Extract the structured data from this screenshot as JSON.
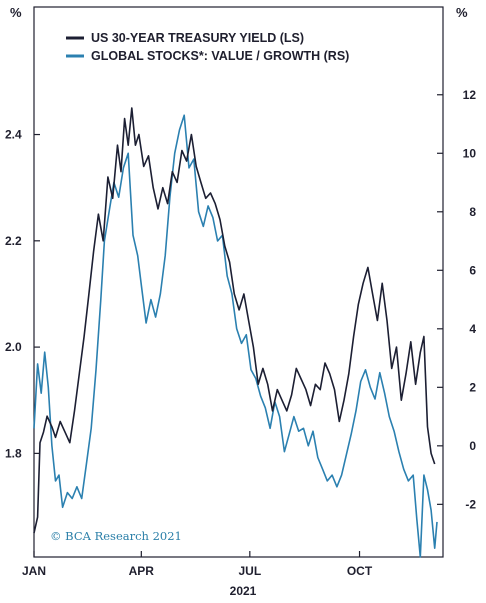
{
  "chart_data": {
    "type": "line",
    "title": "",
    "left_axis": {
      "unit_label": "%",
      "ticks": [
        1.8,
        2.0,
        2.2,
        2.4
      ],
      "tick_labels": [
        "1.8",
        "2.0",
        "2.2",
        "2.4"
      ],
      "ylim": [
        1.605,
        2.64
      ]
    },
    "right_axis": {
      "unit_label": "%",
      "ticks": [
        -2,
        0,
        2,
        4,
        6,
        8,
        10,
        12
      ],
      "tick_labels": [
        "-2",
        "0",
        "2",
        "4",
        "6",
        "8",
        "10",
        "12"
      ],
      "ylim": [
        -3.8,
        15
      ]
    },
    "x_axis": {
      "ticks": [
        "2021-01-01",
        "2021-04-01",
        "2021-07-01",
        "2021-10-01"
      ],
      "tick_labels": [
        "JAN",
        "APR",
        "JUL",
        "OCT"
      ],
      "year_label": "2021",
      "range": [
        "2021-01-01",
        "2021-12-10"
      ]
    },
    "series": [
      {
        "name": "US 30-YEAR TREASURY YIELD (LS)",
        "axis": "left",
        "color": "#1c1f33",
        "points": [
          [
            "2021-01-01",
            1.65
          ],
          [
            "2021-01-04",
            1.68
          ],
          [
            "2021-01-06",
            1.82
          ],
          [
            "2021-01-09",
            1.84
          ],
          [
            "2021-01-12",
            1.87
          ],
          [
            "2021-01-16",
            1.85
          ],
          [
            "2021-01-19",
            1.83
          ],
          [
            "2021-01-23",
            1.86
          ],
          [
            "2021-01-27",
            1.84
          ],
          [
            "2021-01-31",
            1.82
          ],
          [
            "2021-02-04",
            1.88
          ],
          [
            "2021-02-08",
            1.95
          ],
          [
            "2021-02-12",
            2.02
          ],
          [
            "2021-02-16",
            2.1
          ],
          [
            "2021-02-20",
            2.18
          ],
          [
            "2021-02-24",
            2.25
          ],
          [
            "2021-02-28",
            2.2
          ],
          [
            "2021-03-04",
            2.32
          ],
          [
            "2021-03-08",
            2.28
          ],
          [
            "2021-03-12",
            2.38
          ],
          [
            "2021-03-15",
            2.33
          ],
          [
            "2021-03-18",
            2.43
          ],
          [
            "2021-03-21",
            2.38
          ],
          [
            "2021-03-24",
            2.45
          ],
          [
            "2021-03-27",
            2.38
          ],
          [
            "2021-03-30",
            2.4
          ],
          [
            "2021-04-03",
            2.34
          ],
          [
            "2021-04-07",
            2.36
          ],
          [
            "2021-04-11",
            2.3
          ],
          [
            "2021-04-15",
            2.26
          ],
          [
            "2021-04-19",
            2.3
          ],
          [
            "2021-04-23",
            2.27
          ],
          [
            "2021-04-27",
            2.33
          ],
          [
            "2021-05-01",
            2.31
          ],
          [
            "2021-05-05",
            2.37
          ],
          [
            "2021-05-09",
            2.35
          ],
          [
            "2021-05-13",
            2.4
          ],
          [
            "2021-05-17",
            2.34
          ],
          [
            "2021-05-21",
            2.31
          ],
          [
            "2021-05-25",
            2.28
          ],
          [
            "2021-05-29",
            2.29
          ],
          [
            "2021-06-02",
            2.27
          ],
          [
            "2021-06-06",
            2.24
          ],
          [
            "2021-06-10",
            2.19
          ],
          [
            "2021-06-14",
            2.16
          ],
          [
            "2021-06-18",
            2.1
          ],
          [
            "2021-06-22",
            2.07
          ],
          [
            "2021-06-26",
            2.1
          ],
          [
            "2021-06-30",
            2.05
          ],
          [
            "2021-07-04",
            2.0
          ],
          [
            "2021-07-08",
            1.93
          ],
          [
            "2021-07-12",
            1.96
          ],
          [
            "2021-07-16",
            1.93
          ],
          [
            "2021-07-20",
            1.88
          ],
          [
            "2021-07-24",
            1.92
          ],
          [
            "2021-07-28",
            1.9
          ],
          [
            "2021-08-01",
            1.88
          ],
          [
            "2021-08-05",
            1.91
          ],
          [
            "2021-08-09",
            1.96
          ],
          [
            "2021-08-13",
            1.94
          ],
          [
            "2021-08-17",
            1.92
          ],
          [
            "2021-08-21",
            1.89
          ],
          [
            "2021-08-25",
            1.93
          ],
          [
            "2021-08-29",
            1.92
          ],
          [
            "2021-09-02",
            1.97
          ],
          [
            "2021-09-06",
            1.95
          ],
          [
            "2021-09-10",
            1.92
          ],
          [
            "2021-09-14",
            1.86
          ],
          [
            "2021-09-18",
            1.9
          ],
          [
            "2021-09-22",
            1.95
          ],
          [
            "2021-09-26",
            2.02
          ],
          [
            "2021-09-30",
            2.08
          ],
          [
            "2021-10-04",
            2.12
          ],
          [
            "2021-10-08",
            2.15
          ],
          [
            "2021-10-12",
            2.1
          ],
          [
            "2021-10-16",
            2.05
          ],
          [
            "2021-10-20",
            2.12
          ],
          [
            "2021-10-24",
            2.05
          ],
          [
            "2021-10-28",
            1.96
          ],
          [
            "2021-11-01",
            2.0
          ],
          [
            "2021-11-05",
            1.9
          ],
          [
            "2021-11-09",
            1.95
          ],
          [
            "2021-11-13",
            2.01
          ],
          [
            "2021-11-17",
            1.93
          ],
          [
            "2021-11-21",
            1.99
          ],
          [
            "2021-11-24",
            2.02
          ],
          [
            "2021-11-27",
            1.85
          ],
          [
            "2021-11-30",
            1.8
          ],
          [
            "2021-12-03",
            1.78
          ]
        ]
      },
      {
        "name": "GLOBAL STOCKS*: VALUE / GROWTH (RS)",
        "axis": "right",
        "color": "#2b80b0",
        "points": [
          [
            "2021-01-01",
            0.6
          ],
          [
            "2021-01-04",
            2.8
          ],
          [
            "2021-01-07",
            1.8
          ],
          [
            "2021-01-10",
            3.2
          ],
          [
            "2021-01-13",
            2.0
          ],
          [
            "2021-01-16",
            0.0
          ],
          [
            "2021-01-19",
            -1.2
          ],
          [
            "2021-01-22",
            -1.0
          ],
          [
            "2021-01-25",
            -2.1
          ],
          [
            "2021-01-29",
            -1.6
          ],
          [
            "2021-02-02",
            -1.8
          ],
          [
            "2021-02-06",
            -1.4
          ],
          [
            "2021-02-10",
            -1.8
          ],
          [
            "2021-02-14",
            -0.6
          ],
          [
            "2021-02-18",
            0.6
          ],
          [
            "2021-02-22",
            2.6
          ],
          [
            "2021-02-26",
            5.0
          ],
          [
            "2021-03-01",
            7.0
          ],
          [
            "2021-03-05",
            8.0
          ],
          [
            "2021-03-09",
            9.0
          ],
          [
            "2021-03-13",
            8.5
          ],
          [
            "2021-03-17",
            9.5
          ],
          [
            "2021-03-21",
            10.0
          ],
          [
            "2021-03-25",
            7.2
          ],
          [
            "2021-03-29",
            6.5
          ],
          [
            "2021-04-01",
            5.5
          ],
          [
            "2021-04-05",
            4.2
          ],
          [
            "2021-04-09",
            5.0
          ],
          [
            "2021-04-13",
            4.4
          ],
          [
            "2021-04-17",
            5.2
          ],
          [
            "2021-04-21",
            6.5
          ],
          [
            "2021-04-25",
            8.5
          ],
          [
            "2021-04-29",
            10.0
          ],
          [
            "2021-05-03",
            10.8
          ],
          [
            "2021-05-07",
            11.3
          ],
          [
            "2021-05-11",
            9.5
          ],
          [
            "2021-05-15",
            9.8
          ],
          [
            "2021-05-19",
            8.0
          ],
          [
            "2021-05-23",
            7.5
          ],
          [
            "2021-05-27",
            8.2
          ],
          [
            "2021-05-31",
            7.8
          ],
          [
            "2021-06-04",
            7.0
          ],
          [
            "2021-06-08",
            7.2
          ],
          [
            "2021-06-12",
            5.8
          ],
          [
            "2021-06-16",
            5.2
          ],
          [
            "2021-06-20",
            4.0
          ],
          [
            "2021-06-24",
            3.5
          ],
          [
            "2021-06-28",
            3.8
          ],
          [
            "2021-07-02",
            2.6
          ],
          [
            "2021-07-06",
            2.3
          ],
          [
            "2021-07-10",
            1.7
          ],
          [
            "2021-07-14",
            1.3
          ],
          [
            "2021-07-18",
            0.6
          ],
          [
            "2021-07-22",
            1.5
          ],
          [
            "2021-07-26",
            1.0
          ],
          [
            "2021-07-30",
            -0.2
          ],
          [
            "2021-08-03",
            0.4
          ],
          [
            "2021-08-07",
            1.0
          ],
          [
            "2021-08-11",
            0.5
          ],
          [
            "2021-08-15",
            0.6
          ],
          [
            "2021-08-19",
            0.0
          ],
          [
            "2021-08-23",
            0.5
          ],
          [
            "2021-08-27",
            -0.4
          ],
          [
            "2021-08-31",
            -0.8
          ],
          [
            "2021-09-04",
            -1.2
          ],
          [
            "2021-09-08",
            -1.0
          ],
          [
            "2021-09-12",
            -1.4
          ],
          [
            "2021-09-16",
            -1.0
          ],
          [
            "2021-09-20",
            -0.3
          ],
          [
            "2021-09-24",
            0.4
          ],
          [
            "2021-09-28",
            1.2
          ],
          [
            "2021-10-02",
            2.2
          ],
          [
            "2021-10-06",
            2.6
          ],
          [
            "2021-10-10",
            2.0
          ],
          [
            "2021-10-14",
            1.6
          ],
          [
            "2021-10-18",
            2.5
          ],
          [
            "2021-10-22",
            1.8
          ],
          [
            "2021-10-26",
            1.0
          ],
          [
            "2021-10-30",
            0.5
          ],
          [
            "2021-11-03",
            -0.2
          ],
          [
            "2021-11-07",
            -0.8
          ],
          [
            "2021-11-11",
            -1.2
          ],
          [
            "2021-11-15",
            -1.0
          ],
          [
            "2021-11-18",
            -2.5
          ],
          [
            "2021-11-21",
            -3.8
          ],
          [
            "2021-11-24",
            -1.0
          ],
          [
            "2021-11-27",
            -1.5
          ],
          [
            "2021-11-30",
            -2.2
          ],
          [
            "2021-12-03",
            -3.5
          ],
          [
            "2021-12-05",
            -2.6
          ]
        ]
      }
    ],
    "annotation": "© BCA Research 2021",
    "grid": false,
    "legend_position": "top-left"
  }
}
